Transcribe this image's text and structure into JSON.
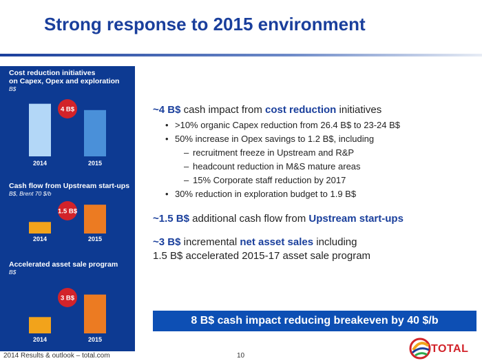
{
  "header": {
    "title": "Strong response to 2015 environment"
  },
  "left_panels": [
    {
      "title_lines": [
        "Cost reduction initiatives",
        "on Capex, Opex and exploration"
      ],
      "unit": "B$",
      "badge": "4 B$"
    },
    {
      "title_lines": [
        "Cash flow from Upstream start-ups"
      ],
      "unit": "B$, Brent 70 $/b",
      "badge": "1.5 B$"
    },
    {
      "title_lines": [
        "Accelerated asset sale program"
      ],
      "unit": "B$",
      "badge": "3 B$"
    }
  ],
  "chart_data": [
    {
      "type": "bar",
      "categories": [
        "2014",
        "2015"
      ],
      "values": [
        1.0,
        0.88
      ],
      "colors": [
        "#b3d7f7",
        "#4a90d9"
      ],
      "ylim": [
        0,
        1.1
      ],
      "annotation": "4 B$"
    },
    {
      "type": "bar",
      "categories": [
        "2014",
        "2015"
      ],
      "values": [
        0.4,
        1.0
      ],
      "colors": [
        "#f2a31b",
        "#ec7b22"
      ],
      "ylim": [
        0,
        1.1
      ],
      "annotation": "1.5 B$"
    },
    {
      "type": "bar",
      "categories": [
        "2014",
        "2015"
      ],
      "values": [
        0.42,
        1.0
      ],
      "colors": [
        "#f2a31b",
        "#ec7b22"
      ],
      "ylim": [
        0,
        1.1
      ],
      "annotation": "3 B$"
    }
  ],
  "content": {
    "h1": {
      "pre": "~4 B$",
      "mid": " cash impact from ",
      "acc": "cost reduction",
      "post": " initiatives"
    },
    "b1": ">10% organic Capex reduction from 26.4 B$ to 23-24 B$",
    "b2": "50% increase in Opex savings to 1.2 B$, including",
    "s1": "recruitment freeze in Upstream and R&P",
    "s2": "headcount reduction in M&S mature areas",
    "s3": "15% Corporate staff reduction by 2017",
    "b3": "30% reduction in exploration budget to 1.9 B$",
    "h2": {
      "pre": "~1.5 B$",
      "mid": " additional cash flow from ",
      "acc": "Upstream start-ups"
    },
    "h3": {
      "pre": "~3 B$",
      "mid": " incremental ",
      "acc": "net asset sales",
      "post": " including",
      "line2": "1.5 B$ accelerated 2015-17 asset sale program"
    }
  },
  "banner": "8 B$ cash impact reducing breakeven by 40 $/b",
  "footer": {
    "left": "2014 Results & outlook – total.com",
    "page": "10"
  },
  "logo": {
    "text": "TOTAL"
  },
  "colors": {
    "navy": "#0d3a92",
    "accent": "#1a3f9c",
    "banner": "#0d4fb4",
    "badge": "#d2232a",
    "orange": "#ec7b22"
  }
}
